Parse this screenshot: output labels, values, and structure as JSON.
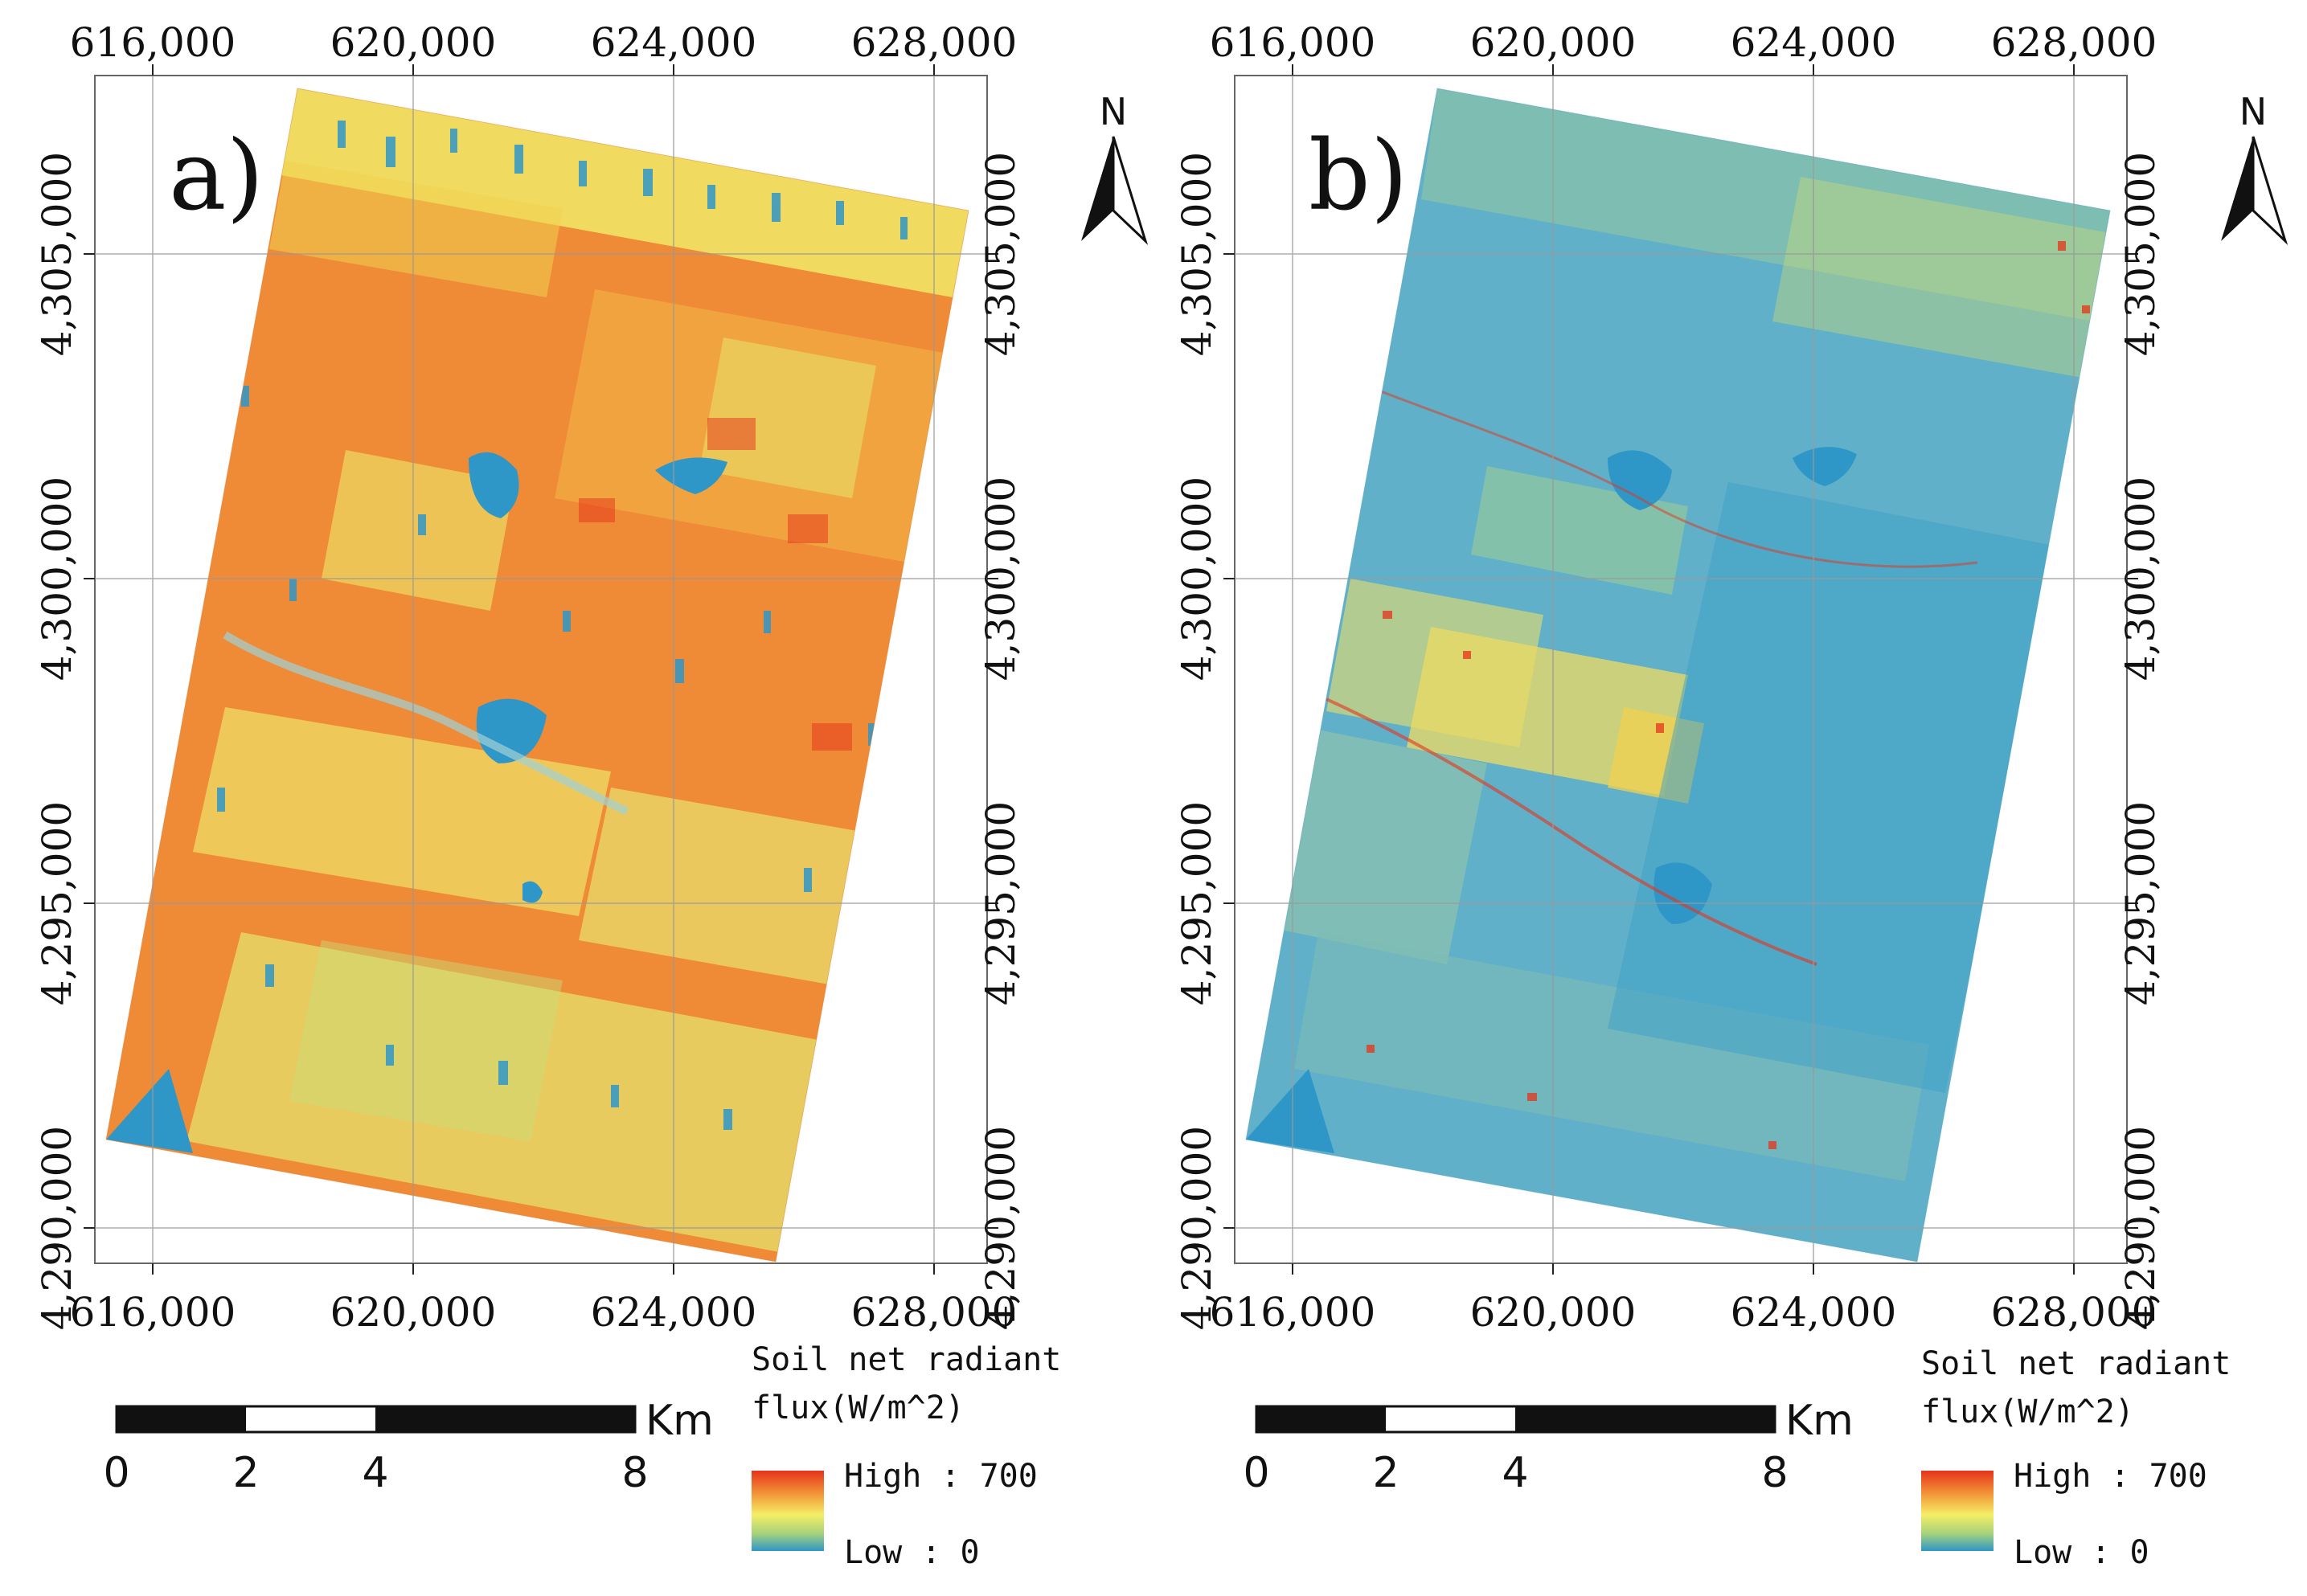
{
  "panels": [
    {
      "label": "a)",
      "theme": "warm",
      "x_ticks": [
        "616,000",
        "620,000",
        "624,000",
        "628,000"
      ],
      "y_ticks": [
        "4,305,000",
        "4,300,000",
        "4,295,000",
        "4,290,000"
      ],
      "north": "N",
      "scale_bar": {
        "labels": [
          "0",
          "2",
          "4",
          "8"
        ],
        "unit": "Km"
      },
      "legend": {
        "title_line1": "Soil net radiant",
        "title_line2": "flux(W/m^2)",
        "high": "High : 700",
        "low": "Low : 0"
      }
    },
    {
      "label": "b)",
      "theme": "cool",
      "x_ticks": [
        "616,000",
        "620,000",
        "624,000",
        "628,000"
      ],
      "y_ticks": [
        "4,305,000",
        "4,300,000",
        "4,295,000",
        "4,290,000"
      ],
      "north": "N",
      "scale_bar": {
        "labels": [
          "0",
          "2",
          "4",
          "8"
        ],
        "unit": "Km"
      },
      "legend": {
        "title_line1": "Soil net radiant",
        "title_line2": "flux(W/m^2)",
        "high": "High : 700",
        "low": "Low : 0"
      }
    }
  ],
  "colors": {
    "high": "#e6331a",
    "mid_high": "#f39a3a",
    "mid": "#f4ee66",
    "mid_low": "#a7d27a",
    "low": "#2f97c8",
    "warm_base": "#ef8a36",
    "cool_base": "#5fb0c8"
  }
}
